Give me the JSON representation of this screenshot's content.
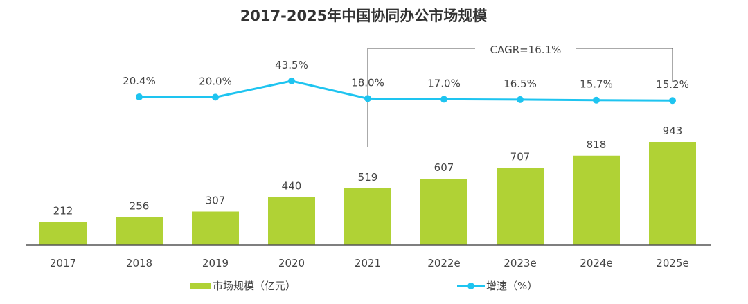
{
  "chart_data": {
    "type": "bar+line",
    "title": "2017-2025年中国协同办公市场规模",
    "categories": [
      "2017",
      "2018",
      "2019",
      "2020",
      "2021",
      "2022e",
      "2023e",
      "2024e",
      "2025e"
    ],
    "series": [
      {
        "name": "市场规模（亿元）",
        "type": "bar",
        "color": "#b0d235",
        "values": [
          212,
          256,
          307,
          440,
          519,
          607,
          707,
          818,
          943
        ]
      },
      {
        "name": "增速（%）",
        "type": "line",
        "color": "#1ec4f0",
        "values": [
          null,
          20.4,
          20.0,
          43.5,
          18.0,
          17.0,
          16.5,
          15.7,
          15.2
        ],
        "labels": [
          "",
          "20.4%",
          "20.0%",
          "43.5%",
          "18.0%",
          "17.0%",
          "16.5%",
          "15.7%",
          "15.2%"
        ]
      }
    ],
    "annotation": {
      "text": "CAGR=16.1%",
      "from": "2021",
      "to": "2025e"
    },
    "grid": false,
    "legend": "bottom"
  }
}
